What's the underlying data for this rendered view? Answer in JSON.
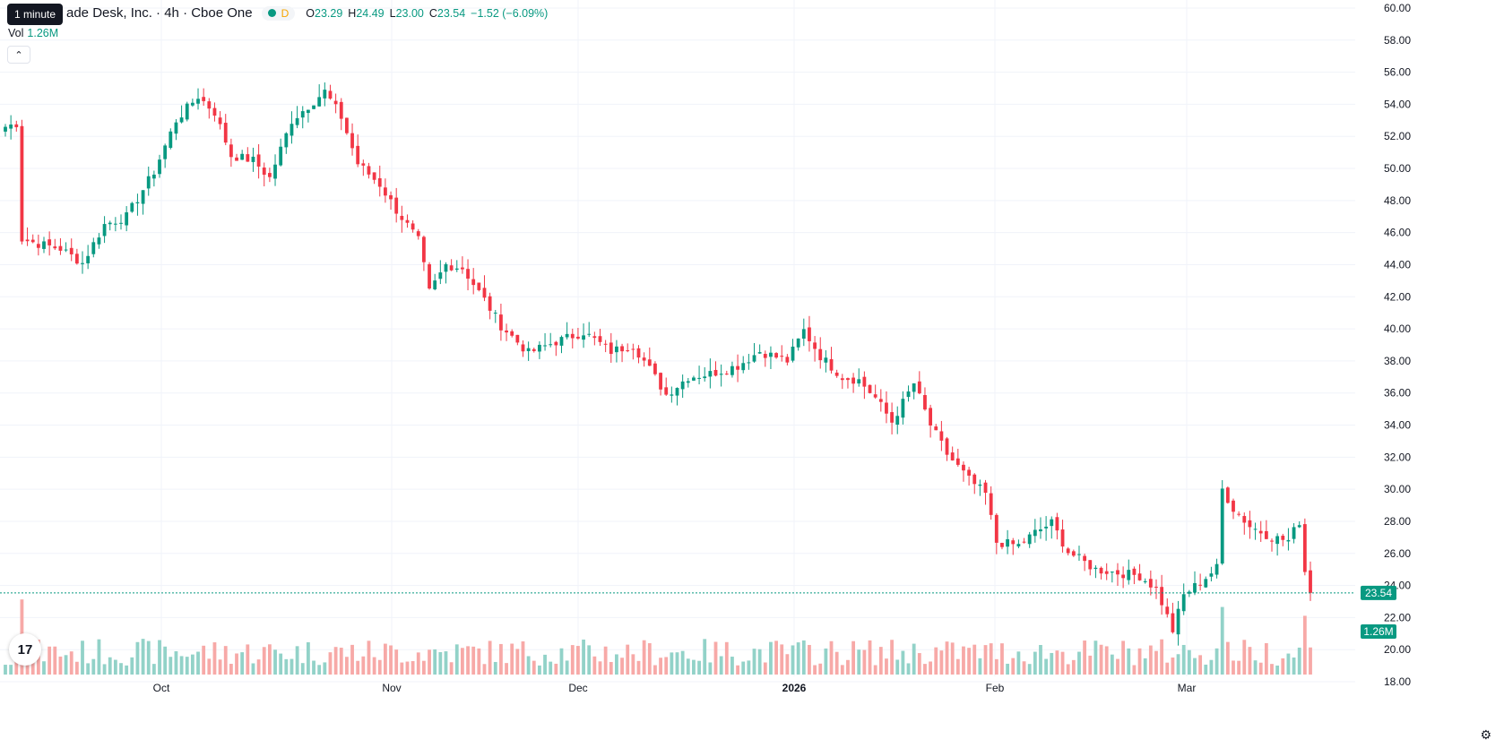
{
  "legend": {
    "symbol_title": "ade Desk, Inc. · 4h · Cboe One",
    "interval_badge": "D",
    "ohlc": [
      {
        "k": "O",
        "v": "23.29"
      },
      {
        "k": "H",
        "v": "24.49"
      },
      {
        "k": "L",
        "v": "23.00"
      },
      {
        "k": "C",
        "v": "23.54"
      },
      {
        "k": "",
        "v": "−1.52 (−6.09%)"
      }
    ]
  },
  "tooltip": "1 minute",
  "volume": {
    "label": "Vol",
    "value": "1.26M"
  },
  "collapse_icon": "chevron-up-icon",
  "logo_icon": "tradingview-logo",
  "settings_icon": "gear-icon",
  "colors": {
    "up": "#089981",
    "down": "#f23645",
    "up_vol": "#92d2c8",
    "down_vol": "#f7a9a7",
    "grid": "#f0f3fa",
    "axis_text": "#131722"
  },
  "chart_data": {
    "type": "candlestick",
    "y_axis": {
      "ticks": [
        "60.00",
        "58.00",
        "56.00",
        "54.00",
        "52.00",
        "50.00",
        "48.00",
        "46.00",
        "44.00",
        "42.00",
        "40.00",
        "38.00",
        "36.00",
        "34.00",
        "32.00",
        "30.00",
        "28.00",
        "26.00",
        "24.00",
        "22.00",
        "20.00",
        "18.00"
      ],
      "range": [
        17.5,
        60.5
      ]
    },
    "x_axis": {
      "labels": [
        "Oct",
        "Nov",
        "Dec",
        "2026",
        "Feb",
        "Mar"
      ]
    },
    "last_price": "23.54",
    "last_volume": "1.26M",
    "anchors": [
      [
        0,
        52.6
      ],
      [
        2,
        52.8
      ],
      [
        3,
        45.6
      ],
      [
        6,
        45.3
      ],
      [
        10,
        45.0
      ],
      [
        14,
        44.1
      ],
      [
        18,
        46.5
      ],
      [
        22,
        47.0
      ],
      [
        27,
        49.8
      ],
      [
        31,
        53.0
      ],
      [
        35,
        54.5
      ],
      [
        38,
        53.5
      ],
      [
        41,
        50.8
      ],
      [
        45,
        50.5
      ],
      [
        48,
        49.4
      ],
      [
        52,
        53.0
      ],
      [
        58,
        54.8
      ],
      [
        61,
        53.2
      ],
      [
        64,
        50.3
      ],
      [
        68,
        49.0
      ],
      [
        71,
        47.4
      ],
      [
        75,
        45.5
      ],
      [
        77,
        42.3
      ],
      [
        80,
        44.0
      ],
      [
        83,
        43.8
      ],
      [
        87,
        41.8
      ],
      [
        90,
        40.2
      ],
      [
        95,
        38.5
      ],
      [
        100,
        39.2
      ],
      [
        105,
        39.8
      ],
      [
        110,
        38.6
      ],
      [
        114,
        39.0
      ],
      [
        117,
        37.5
      ],
      [
        120,
        35.9
      ],
      [
        124,
        37.0
      ],
      [
        128,
        37.2
      ],
      [
        133,
        37.7
      ],
      [
        137,
        38.6
      ],
      [
        142,
        38.0
      ],
      [
        145,
        39.9
      ],
      [
        148,
        38.3
      ],
      [
        152,
        37.0
      ],
      [
        155,
        36.8
      ],
      [
        158,
        35.7
      ],
      [
        161,
        34.2
      ],
      [
        165,
        36.6
      ],
      [
        168,
        34.0
      ],
      [
        171,
        32.2
      ],
      [
        175,
        30.6
      ],
      [
        178,
        29.7
      ],
      [
        180,
        26.7
      ],
      [
        184,
        26.5
      ],
      [
        187,
        27.3
      ],
      [
        190,
        27.9
      ],
      [
        193,
        26.1
      ],
      [
        198,
        25.0
      ],
      [
        202,
        24.8
      ],
      [
        206,
        24.6
      ],
      [
        209,
        23.8
      ],
      [
        212,
        21.2
      ],
      [
        214,
        23.4
      ],
      [
        218,
        24.5
      ],
      [
        220,
        25.1
      ],
      [
        221,
        30.0
      ],
      [
        223,
        28.8
      ],
      [
        226,
        27.7
      ],
      [
        230,
        27.0
      ],
      [
        233,
        26.8
      ],
      [
        235,
        28.0
      ],
      [
        236,
        24.9
      ],
      [
        237,
        23.54
      ]
    ]
  }
}
